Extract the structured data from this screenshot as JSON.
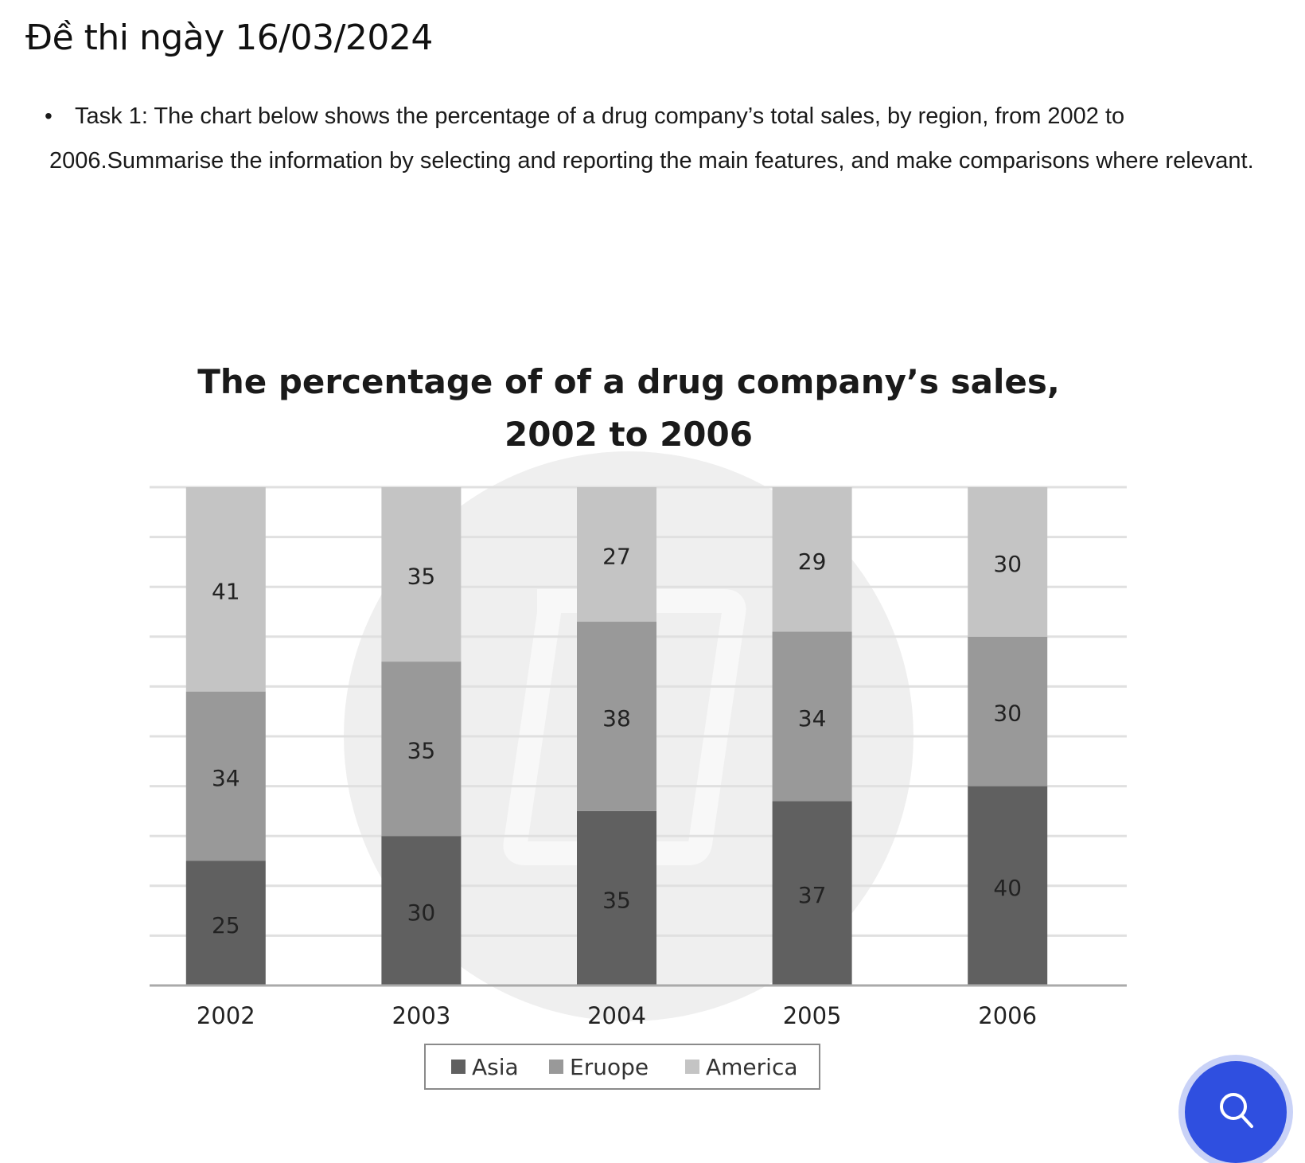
{
  "page": {
    "title": "Đề thi ngày 16/03/2024",
    "task_text": "Task 1: The chart below shows the percentage of a drug company’s total sales, by region, from 2002 to 2006.Summarise the information by selecting and reporting the main features, and make comparisons where relevant."
  },
  "chart_data": {
    "type": "bar",
    "stacked": true,
    "title_line1": "The percentage of of a drug company’s sales,",
    "title_line2": "2002 to 2006",
    "categories": [
      "2002",
      "2003",
      "2004",
      "2005",
      "2006"
    ],
    "series": [
      {
        "name": "Asia",
        "values": [
          25,
          30,
          35,
          37,
          40
        ],
        "color": "#606060"
      },
      {
        "name": "Eruope",
        "values": [
          34,
          35,
          38,
          34,
          30
        ],
        "color": "#999999"
      },
      {
        "name": "America",
        "values": [
          41,
          35,
          27,
          29,
          30
        ],
        "color": "#c4c4c4"
      }
    ],
    "ylim": [
      0,
      100
    ],
    "grid": true,
    "legend": "bottom",
    "axis_color": "#aaaaaa",
    "grid_color": "#e0e0e0"
  },
  "search_button": {
    "icon": "search-icon",
    "color": "#2f4fe0"
  }
}
